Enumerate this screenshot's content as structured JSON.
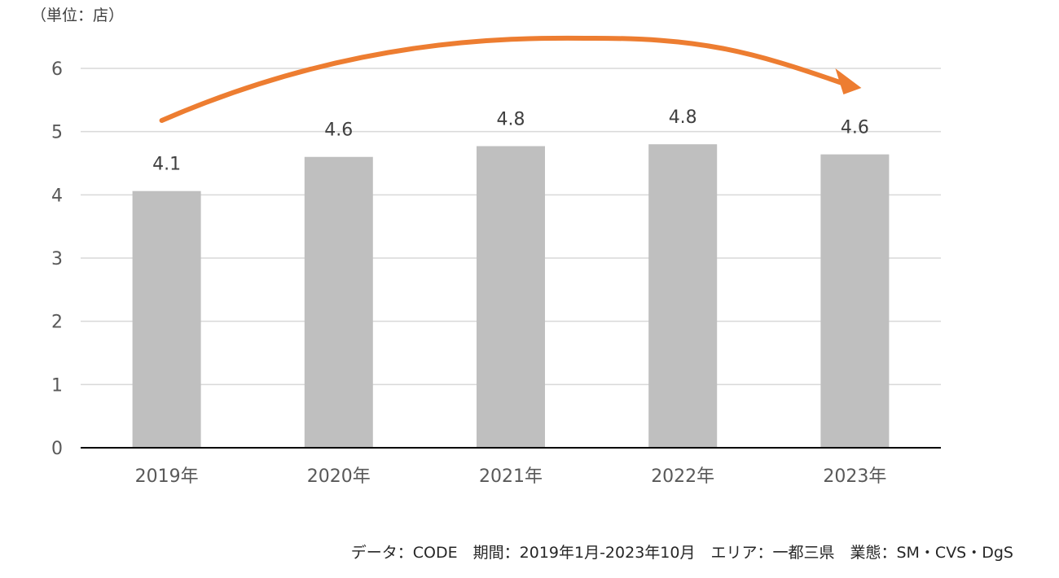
{
  "chart_data": {
    "type": "bar",
    "unit_label": "（単位：店）",
    "categories": [
      "2019年",
      "2020年",
      "2021年",
      "2022年",
      "2023年"
    ],
    "values": [
      4.06,
      4.6,
      4.77,
      4.8,
      4.64
    ],
    "data_labels": [
      "4.1",
      "4.6",
      "4.8",
      "4.8",
      "4.6"
    ],
    "ylim": [
      0,
      6
    ],
    "yticks": [
      "0",
      "1",
      "2",
      "3",
      "4",
      "5",
      "6"
    ],
    "grid": true,
    "bar_color": "#bfbfbf",
    "grid_color": "#d9d9d9",
    "axis_color": "#000000",
    "arrow": {
      "from_category": "2019年",
      "to_category": "2023年",
      "color": "#ed7d31"
    },
    "source_note": "データ：CODE　期間：2019年1月-2023年10月　エリア：一都三県　業態：SM・CVS・DgS"
  }
}
